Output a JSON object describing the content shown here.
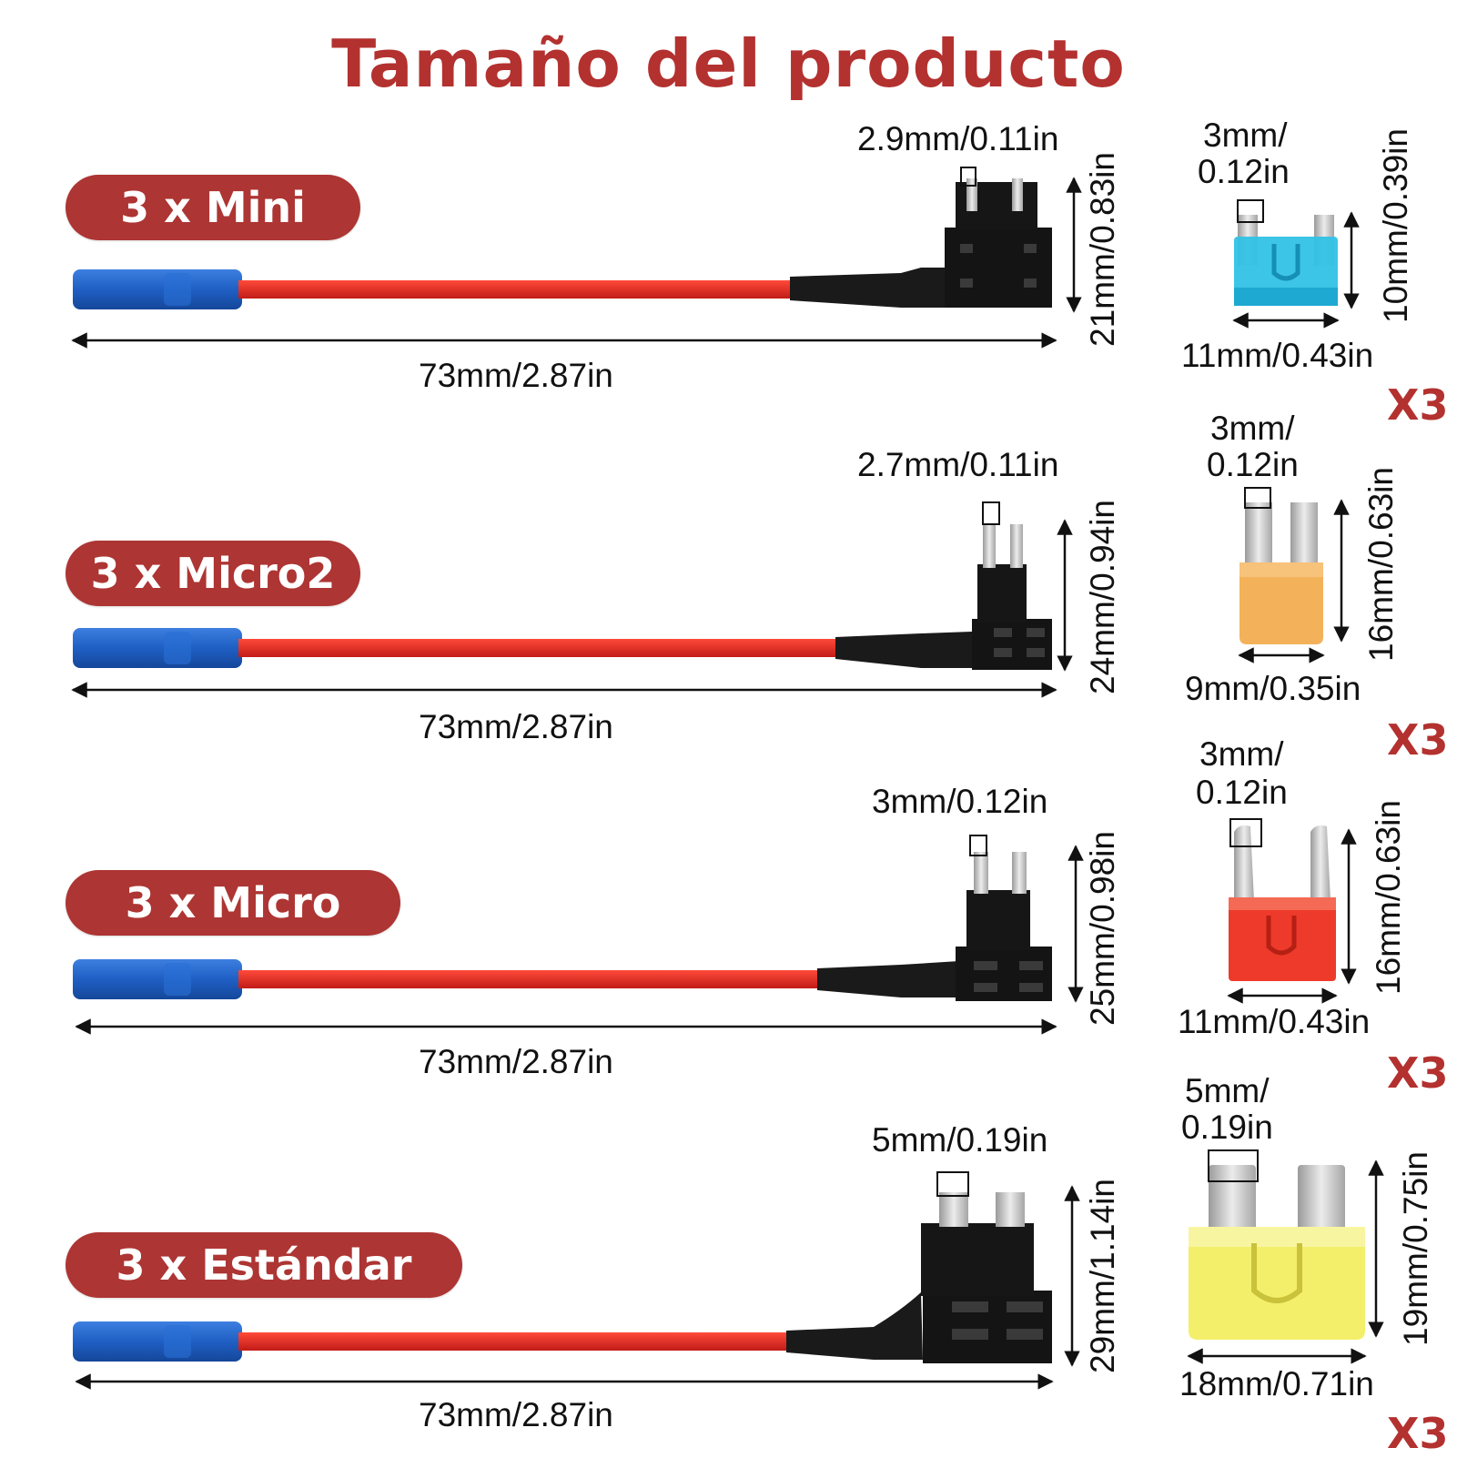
{
  "title": "Tamaño del producto",
  "colors": {
    "title": "#b3312f",
    "badge": "#ad3533",
    "wire": "#e02a26",
    "connector": "#1f5fc4"
  },
  "rows": [
    {
      "badge": "3 x Mini",
      "length": "73mm/2.87in",
      "height": "21mm/0.83in",
      "blade": "2.9mm/0.11in",
      "fuse": {
        "color": "blue",
        "blade_l1": "3mm/",
        "blade_l2": "0.12in",
        "height": "10mm/0.39in",
        "width": "11mm/0.43in",
        "qty": "X3"
      }
    },
    {
      "badge": "3 x Micro2",
      "length": "73mm/2.87in",
      "height": "24mm/0.94in",
      "blade": "2.7mm/0.11in",
      "fuse": {
        "color": "orange",
        "blade_l1": "3mm/",
        "blade_l2": "0.12in",
        "height": "16mm/0.63in",
        "width": "9mm/0.35in",
        "qty": "X3"
      }
    },
    {
      "badge": "3 x Micro",
      "length": "73mm/2.87in",
      "height": "25mm/0.98in",
      "blade": "3mm/0.12in",
      "fuse": {
        "color": "red",
        "blade_l1": "3mm/",
        "blade_l2": "0.12in",
        "height": "16mm/0.63in",
        "width": "11mm/0.43in",
        "qty": "X3"
      }
    },
    {
      "badge": "3 x Estándar",
      "length": "73mm/2.87in",
      "height": "29mm/1.14in",
      "blade": "5mm/0.19in",
      "fuse": {
        "color": "yellow",
        "blade_l1": "5mm/",
        "blade_l2": "0.19in",
        "height": "19mm/0.75in",
        "width": "18mm/0.71in",
        "qty": "X3"
      }
    }
  ]
}
